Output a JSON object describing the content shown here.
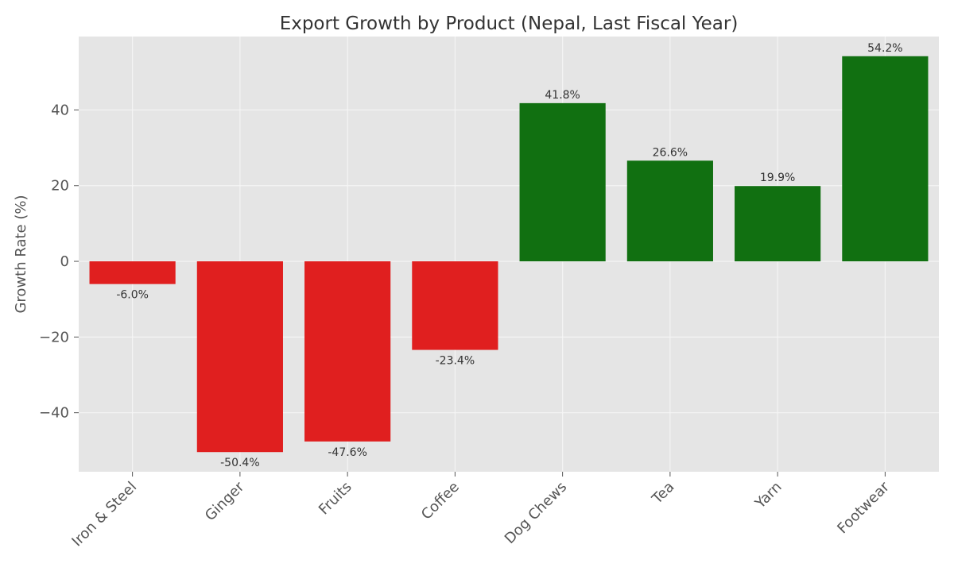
{
  "chart_data": {
    "type": "bar",
    "title": "Export Growth by Product (Nepal, Last Fiscal Year)",
    "xlabel": "",
    "ylabel": "Growth Rate (%)",
    "categories": [
      "Iron & Steel",
      "Ginger",
      "Fruits",
      "Coffee",
      "Dog Chews",
      "Tea",
      "Yarn",
      "Footwear"
    ],
    "values": [
      -6.0,
      -50.4,
      -47.6,
      -23.4,
      41.8,
      26.6,
      19.9,
      54.2
    ],
    "data_labels": [
      "-6.0%",
      "-50.4%",
      "-47.6%",
      "-23.4%",
      "41.8%",
      "26.6%",
      "19.9%",
      "54.2%"
    ],
    "ylim": [
      -55.6,
      59.4
    ],
    "yticks": [
      -40,
      -20,
      0,
      20,
      40
    ],
    "ytick_labels": [
      "−40",
      "−20",
      "0",
      "20",
      "40"
    ],
    "grid": true,
    "colors": {
      "negative": "#e01f1f",
      "positive": "#117011",
      "plot_background": "#e5e5e5",
      "grid": "#f5f5f5",
      "text": "#333333",
      "tick_text": "#555555"
    }
  }
}
